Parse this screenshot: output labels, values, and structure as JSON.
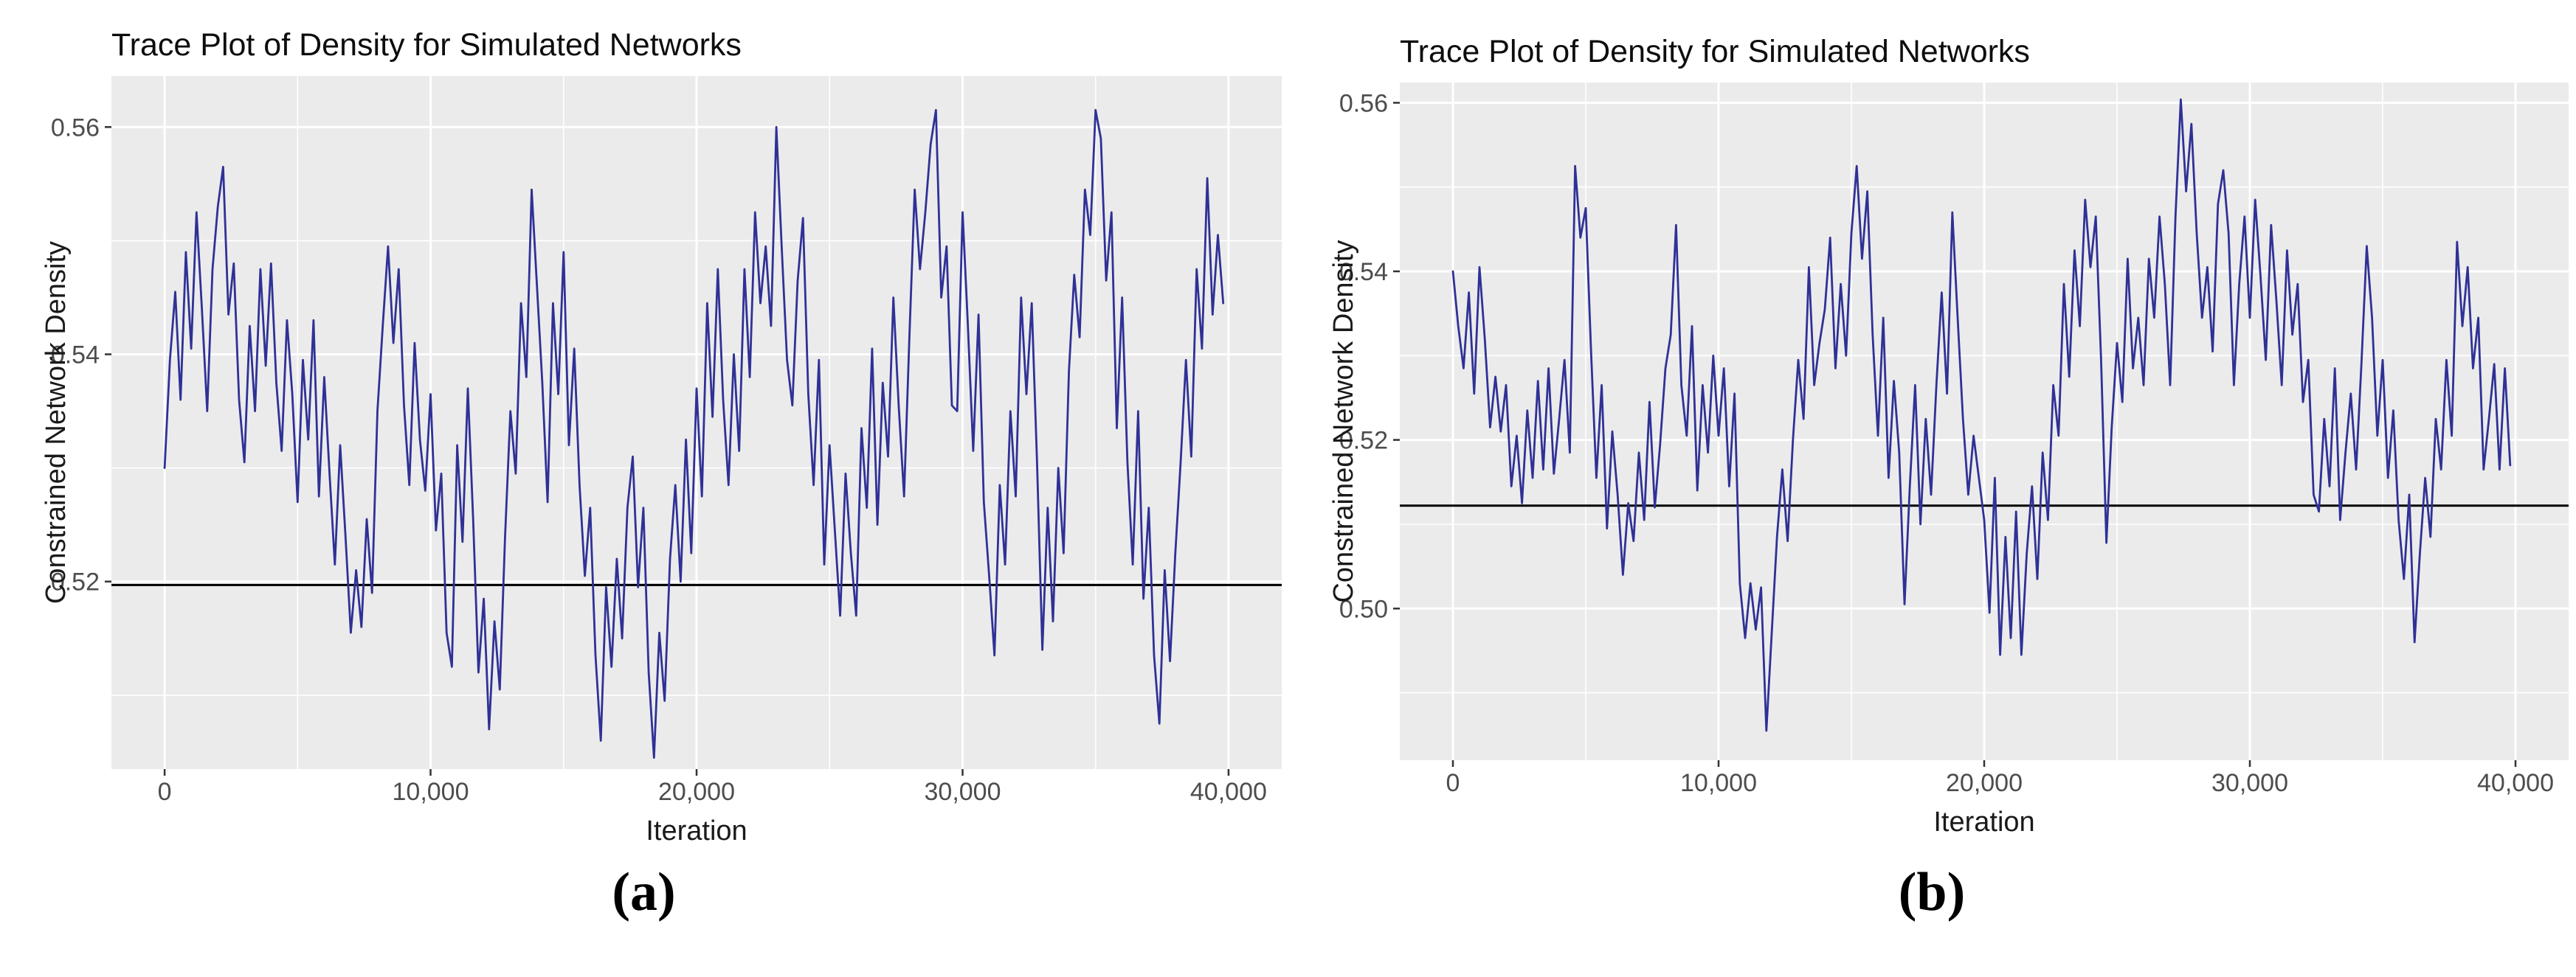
{
  "styles": {
    "panel_background": "#ebebeb",
    "grid_color": "#ffffff",
    "trace_color": "#2f3196",
    "reference_line_color": "#000000",
    "tick_text_color": "#4d4d4d",
    "title_text_color": "#0d0d0d",
    "axis_title_color": "#1a1a1a",
    "tick_mark_color": "#333333"
  },
  "chart_data": [
    {
      "type": "line",
      "panel": "a",
      "caption": "(a)",
      "title": "Trace Plot of Density for Simulated Networks",
      "xlabel": "Iteration",
      "ylabel": "Constrained Network Density",
      "legend": "none",
      "grid": true,
      "xlim": [
        -2000,
        42000
      ],
      "ylim": [
        0.5035,
        0.5645
      ],
      "x_ticks": [
        0,
        10000,
        20000,
        30000,
        40000
      ],
      "x_tick_labels": [
        "0",
        "10,000",
        "20,000",
        "30,000",
        "40,000"
      ],
      "x_minor_ticks": [
        5000,
        15000,
        25000,
        35000
      ],
      "y_ticks": [
        0.52,
        0.54,
        0.56
      ],
      "y_tick_labels": [
        "0.52",
        "0.54",
        "0.56"
      ],
      "y_minor_ticks": [
        0.51,
        0.53,
        0.55
      ],
      "reference_line_y": 0.5197,
      "series": [
        {
          "name": "simulated-network-density",
          "x_start": 0,
          "x_step": 200,
          "values": [
            0.53,
            0.5395,
            0.5455,
            0.536,
            0.549,
            0.5405,
            0.5525,
            0.544,
            0.535,
            0.5475,
            0.553,
            0.5565,
            0.5435,
            0.548,
            0.536,
            0.5305,
            0.5425,
            0.535,
            0.5475,
            0.539,
            0.548,
            0.5375,
            0.5315,
            0.543,
            0.5365,
            0.527,
            0.5395,
            0.5325,
            0.543,
            0.5275,
            0.538,
            0.5295,
            0.5215,
            0.532,
            0.524,
            0.5155,
            0.521,
            0.516,
            0.5255,
            0.519,
            0.535,
            0.5425,
            0.5495,
            0.541,
            0.5475,
            0.5355,
            0.5285,
            0.541,
            0.5325,
            0.528,
            0.5365,
            0.5245,
            0.5295,
            0.5155,
            0.5125,
            0.532,
            0.5235,
            0.537,
            0.5255,
            0.512,
            0.5185,
            0.507,
            0.5165,
            0.5105,
            0.524,
            0.535,
            0.5295,
            0.5445,
            0.538,
            0.5545,
            0.546,
            0.5375,
            0.527,
            0.5445,
            0.5365,
            0.549,
            0.532,
            0.5405,
            0.5285,
            0.5205,
            0.5265,
            0.5135,
            0.506,
            0.5195,
            0.5125,
            0.522,
            0.515,
            0.5265,
            0.531,
            0.5195,
            0.5265,
            0.512,
            0.5045,
            0.5155,
            0.5095,
            0.522,
            0.5285,
            0.52,
            0.5325,
            0.5225,
            0.537,
            0.5275,
            0.5445,
            0.5345,
            0.5475,
            0.536,
            0.5285,
            0.54,
            0.5315,
            0.5475,
            0.538,
            0.5525,
            0.5445,
            0.5495,
            0.5425,
            0.56,
            0.5495,
            0.5395,
            0.5355,
            0.5465,
            0.552,
            0.5365,
            0.5285,
            0.5395,
            0.5215,
            0.532,
            0.5245,
            0.517,
            0.5295,
            0.5225,
            0.517,
            0.5335,
            0.5265,
            0.5405,
            0.525,
            0.5375,
            0.531,
            0.545,
            0.5355,
            0.5275,
            0.5415,
            0.5545,
            0.5475,
            0.5525,
            0.5585,
            0.5615,
            0.545,
            0.5495,
            0.5355,
            0.535,
            0.5525,
            0.5425,
            0.5315,
            0.5435,
            0.527,
            0.5205,
            0.5135,
            0.5285,
            0.5215,
            0.535,
            0.5275,
            0.545,
            0.5365,
            0.5445,
            0.5305,
            0.514,
            0.5265,
            0.5165,
            0.53,
            0.5225,
            0.5385,
            0.547,
            0.5415,
            0.5545,
            0.5505,
            0.5615,
            0.559,
            0.5465,
            0.5525,
            0.5335,
            0.545,
            0.5305,
            0.5215,
            0.535,
            0.5185,
            0.5265,
            0.5135,
            0.5075,
            0.521,
            0.513,
            0.5225,
            0.5305,
            0.5395,
            0.531,
            0.5475,
            0.5405,
            0.5555,
            0.5435,
            0.5505,
            0.5445
          ]
        }
      ]
    },
    {
      "type": "line",
      "panel": "b",
      "caption": "(b)",
      "title": "Trace Plot of Density for Simulated Networks",
      "xlabel": "Iteration",
      "ylabel": "Constrained Network Density",
      "legend": "none",
      "grid": true,
      "xlim": [
        -2000,
        42000
      ],
      "ylim": [
        0.482,
        0.5624
      ],
      "x_ticks": [
        0,
        10000,
        20000,
        30000,
        40000
      ],
      "x_tick_labels": [
        "0",
        "10,000",
        "20,000",
        "30,000",
        "40,000"
      ],
      "x_minor_ticks": [
        5000,
        15000,
        25000,
        35000
      ],
      "y_ticks": [
        0.5,
        0.52,
        0.54,
        0.56
      ],
      "y_tick_labels": [
        "0.50",
        "0.52",
        "0.54",
        "0.56"
      ],
      "y_minor_ticks": [
        0.49,
        0.51,
        0.53,
        0.55
      ],
      "reference_line_y": 0.5122,
      "series": [
        {
          "name": "simulated-network-density",
          "x_start": 0,
          "x_step": 200,
          "values": [
            0.54,
            0.5335,
            0.5285,
            0.5375,
            0.5255,
            0.5405,
            0.532,
            0.5215,
            0.5275,
            0.521,
            0.5265,
            0.5145,
            0.5205,
            0.5125,
            0.5235,
            0.5155,
            0.527,
            0.5165,
            0.5285,
            0.516,
            0.5225,
            0.5295,
            0.5185,
            0.5525,
            0.544,
            0.5475,
            0.5305,
            0.5155,
            0.5265,
            0.5095,
            0.521,
            0.5135,
            0.504,
            0.5125,
            0.508,
            0.5185,
            0.5105,
            0.5245,
            0.512,
            0.5195,
            0.5285,
            0.5325,
            0.5455,
            0.5265,
            0.5205,
            0.5335,
            0.514,
            0.5265,
            0.5185,
            0.53,
            0.5205,
            0.5285,
            0.5145,
            0.5255,
            0.503,
            0.4965,
            0.503,
            0.4975,
            0.5025,
            0.4855,
            0.497,
            0.5085,
            0.5165,
            0.508,
            0.52,
            0.5295,
            0.5225,
            0.5405,
            0.5265,
            0.5315,
            0.5355,
            0.544,
            0.5285,
            0.5385,
            0.53,
            0.5445,
            0.5525,
            0.5415,
            0.5495,
            0.5325,
            0.5205,
            0.5345,
            0.5155,
            0.527,
            0.5185,
            0.5005,
            0.5145,
            0.5265,
            0.51,
            0.5225,
            0.5135,
            0.5265,
            0.5375,
            0.5255,
            0.547,
            0.5345,
            0.5225,
            0.5135,
            0.5205,
            0.5155,
            0.5105,
            0.4995,
            0.5155,
            0.4945,
            0.5085,
            0.4965,
            0.5115,
            0.4945,
            0.5065,
            0.5145,
            0.5035,
            0.5185,
            0.5105,
            0.5265,
            0.5205,
            0.5385,
            0.5275,
            0.5425,
            0.5335,
            0.5485,
            0.5405,
            0.5465,
            0.5295,
            0.5078,
            0.5215,
            0.5315,
            0.5245,
            0.5415,
            0.5285,
            0.5345,
            0.5265,
            0.5415,
            0.5345,
            0.5465,
            0.5385,
            0.5265,
            0.5465,
            0.5604,
            0.5495,
            0.5575,
            0.5445,
            0.5345,
            0.5405,
            0.5305,
            0.548,
            0.552,
            0.5445,
            0.5265,
            0.5385,
            0.5465,
            0.5345,
            0.5485,
            0.5395,
            0.5295,
            0.5455,
            0.5365,
            0.5265,
            0.5425,
            0.5325,
            0.5385,
            0.5245,
            0.5295,
            0.5135,
            0.5115,
            0.5225,
            0.5145,
            0.5285,
            0.5105,
            0.5185,
            0.5255,
            0.5165,
            0.529,
            0.543,
            0.5345,
            0.5205,
            0.5295,
            0.5155,
            0.5235,
            0.5105,
            0.5035,
            0.5135,
            0.496,
            0.5065,
            0.5155,
            0.5085,
            0.5225,
            0.5165,
            0.5295,
            0.5205,
            0.5435,
            0.5335,
            0.5405,
            0.5285,
            0.5345,
            0.5165,
            0.5225,
            0.529,
            0.5165,
            0.5285,
            0.517
          ]
        }
      ]
    }
  ]
}
